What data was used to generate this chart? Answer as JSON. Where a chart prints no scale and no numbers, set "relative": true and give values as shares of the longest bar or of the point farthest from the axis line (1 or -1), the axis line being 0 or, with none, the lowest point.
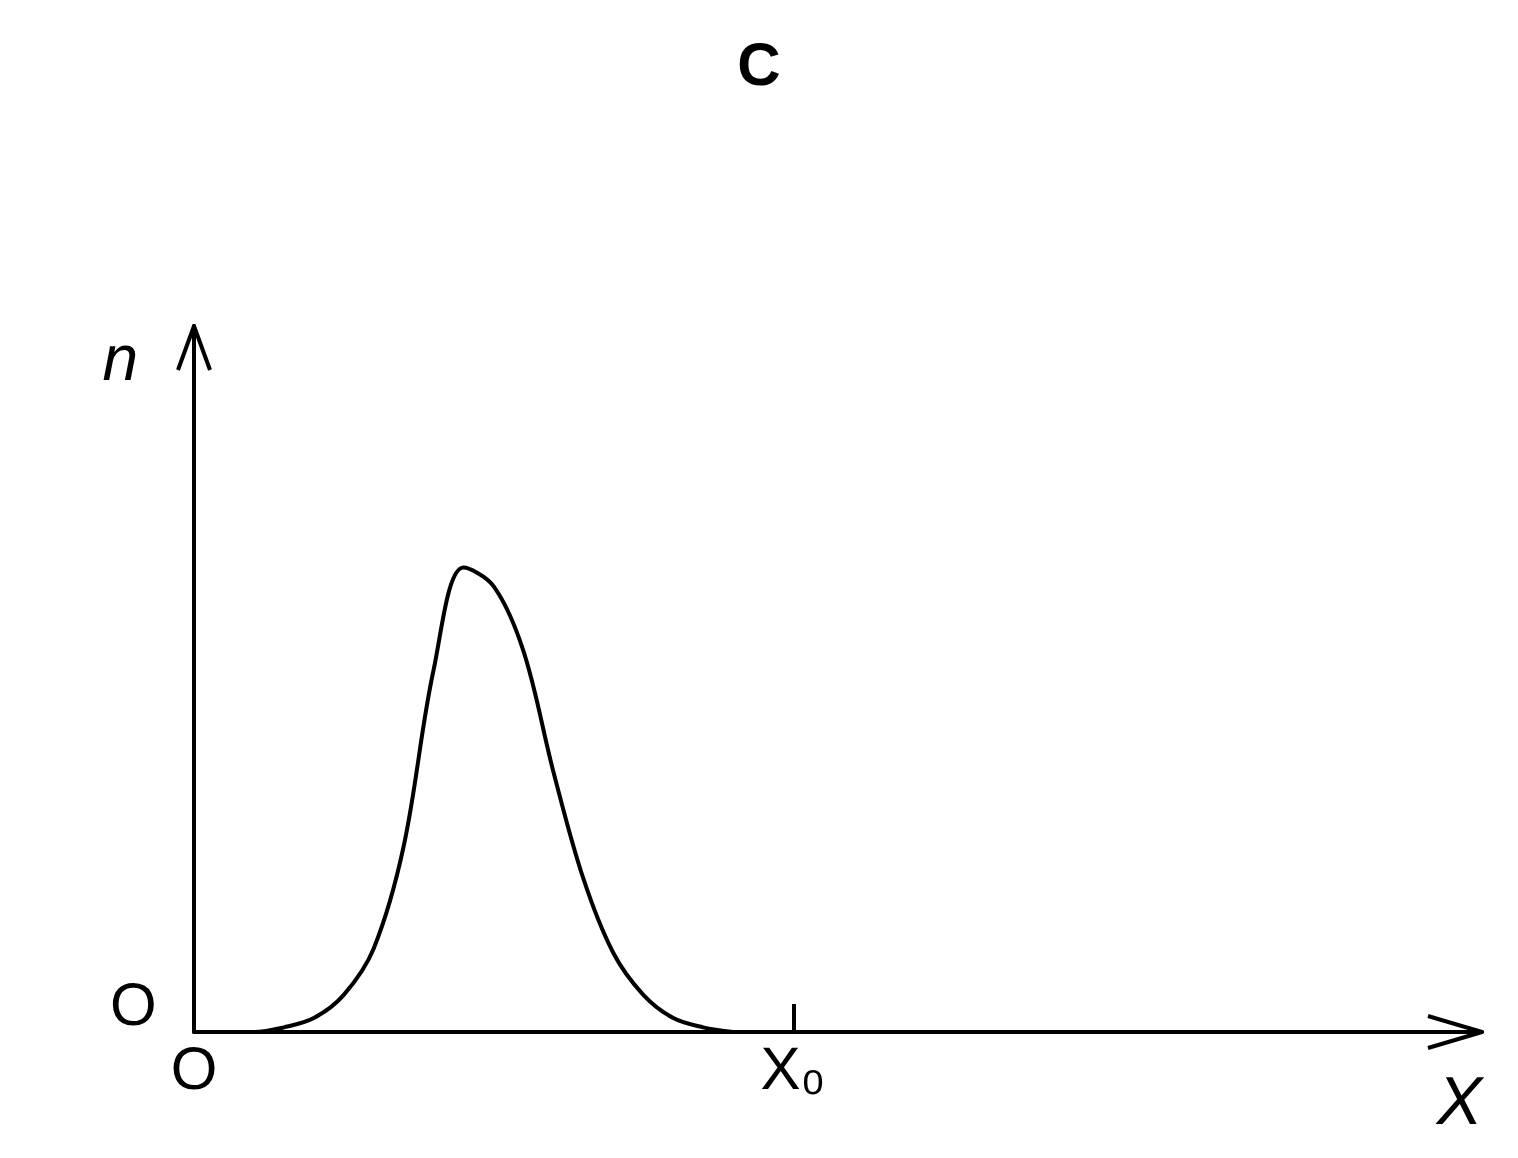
{
  "chart_data": {
    "type": "line",
    "title": "C",
    "xlabel": "X",
    "ylabel": "n",
    "relative": true,
    "categories": [
      "O",
      null,
      null,
      null,
      null,
      null,
      null,
      null,
      null,
      null,
      null,
      null,
      null,
      null,
      null,
      null,
      null,
      null,
      null,
      null,
      "X₀",
      null,
      null,
      null,
      null,
      null,
      null,
      null,
      null,
      null,
      null,
      null,
      null,
      null,
      null,
      null,
      null,
      null,
      null,
      null,
      null,
      null,
      null,
      null
    ],
    "series": [
      {
        "color": "#000000",
        "values": [
          0,
          0,
          0,
          0.01,
          0.03,
          0.08,
          0.18,
          0.4,
          0.78,
          1,
          0.96,
          0.82,
          0.56,
          0.33,
          0.17,
          0.08,
          0.03,
          0.01,
          0,
          null,
          null,
          null,
          null,
          null,
          null,
          null,
          null,
          null,
          null,
          null,
          null,
          null,
          null,
          null,
          null,
          null,
          null,
          null,
          null,
          null,
          null,
          null,
          null,
          null
        ]
      }
    ],
    "annotations": [
      {
        "text": "O",
        "x": "O",
        "y": 0
      }
    ],
    "grid": false,
    "marker": "none",
    "line_style": "solid"
  }
}
